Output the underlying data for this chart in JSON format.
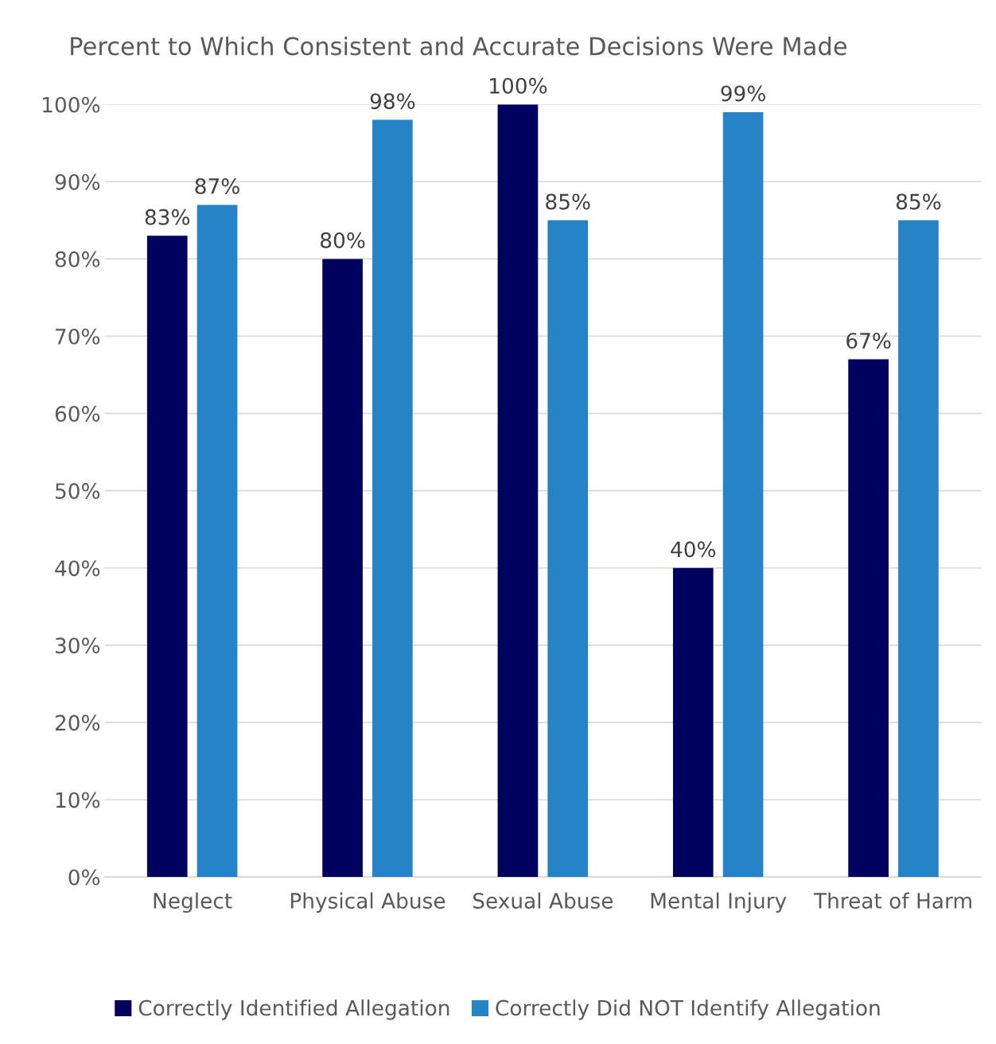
{
  "chart_data": {
    "type": "bar",
    "title": "Percent to Which Consistent and Accurate Decisions Were Made",
    "categories": [
      "Neglect",
      "Physical Abuse",
      "Sexual Abuse",
      "Mental Injury",
      "Threat of Harm"
    ],
    "series": [
      {
        "name": "Correctly Identified Allegation",
        "color": "#00005e",
        "values": [
          83,
          80,
          100,
          40,
          67
        ],
        "value_labels": [
          "83%",
          "80%",
          "100%",
          "40%",
          "67%"
        ]
      },
      {
        "name": "Correctly Did NOT Identify Allegation",
        "color": "#2683c6",
        "values": [
          87,
          98,
          85,
          99,
          85
        ],
        "value_labels": [
          "87%",
          "98%",
          "85%",
          "99%",
          "85%"
        ]
      }
    ],
    "ylim": [
      0,
      100
    ],
    "yticks": [
      {
        "value": 0,
        "label": "0%"
      },
      {
        "value": 10,
        "label": "10%"
      },
      {
        "value": 20,
        "label": "20%"
      },
      {
        "value": 30,
        "label": "30%"
      },
      {
        "value": 40,
        "label": "40%"
      },
      {
        "value": 50,
        "label": "50%"
      },
      {
        "value": 60,
        "label": "60%"
      },
      {
        "value": 70,
        "label": "70%"
      },
      {
        "value": 80,
        "label": "80%"
      },
      {
        "value": 90,
        "label": "90%"
      },
      {
        "value": 100,
        "label": "100%"
      }
    ],
    "grid": "y",
    "legend": "bottom"
  }
}
